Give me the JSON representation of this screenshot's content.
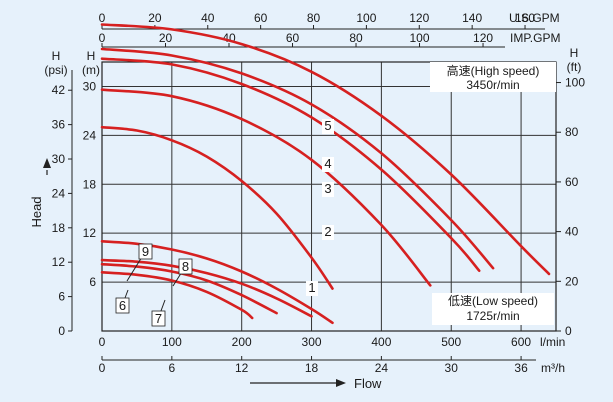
{
  "chart_data": {
    "type": "line",
    "axes": {
      "flow_lmin": {
        "label": "l/min",
        "ticks": [
          0,
          100,
          200,
          300,
          400,
          500,
          600
        ],
        "range": [
          0,
          650
        ]
      },
      "flow_m3h": {
        "label": "m³/h",
        "ticks": [
          0,
          6,
          12,
          18,
          24,
          30,
          36
        ]
      },
      "flow_usgpm": {
        "label": "U.S.GPM",
        "ticks": [
          0,
          20,
          40,
          60,
          80,
          100,
          120,
          140,
          160
        ]
      },
      "flow_impgpm": {
        "label": "IMP.GPM",
        "ticks": [
          0,
          20,
          40,
          60,
          80,
          100,
          120
        ]
      },
      "head_psi": {
        "label": "H\n(psi)",
        "ticks": [
          0,
          6,
          12,
          18,
          24,
          30,
          36,
          42
        ]
      },
      "head_m": {
        "label": "H\n(m)",
        "ticks": [
          6,
          12,
          18,
          24,
          30
        ],
        "range": [
          0,
          33
        ]
      },
      "head_ft": {
        "label": "H\n(ft)",
        "ticks": [
          0,
          20,
          40,
          60,
          80,
          100
        ]
      }
    },
    "xlabel": "Flow",
    "ylabel": "Head",
    "high_speed": {
      "title": "高速(High speed)",
      "rpm": "3450r/min"
    },
    "low_speed": {
      "title": "低速(Low speed)",
      "rpm": "1725r/min"
    },
    "series": [
      {
        "name": "1",
        "speed": "high",
        "x": [
          0,
          50,
          100,
          150,
          200,
          250,
          300,
          330
        ],
        "y": [
          25,
          24.6,
          23.4,
          21.4,
          18.4,
          14.4,
          9,
          5.2
        ]
      },
      {
        "name": "2",
        "speed": "high",
        "x": [
          0,
          100,
          200,
          300,
          400,
          470
        ],
        "y": [
          29.6,
          28.8,
          26,
          21,
          13,
          5.6
        ]
      },
      {
        "name": "3",
        "speed": "high",
        "x": [
          0,
          100,
          200,
          300,
          400,
          500,
          540
        ],
        "y": [
          33.4,
          32.7,
          30.3,
          26.2,
          19.8,
          11.4,
          7.4
        ]
      },
      {
        "name": "4",
        "speed": "high",
        "x": [
          0,
          100,
          200,
          300,
          400,
          500,
          560
        ],
        "y": [
          34.6,
          33.8,
          31.6,
          27.8,
          21.8,
          13.6,
          7.7
        ]
      },
      {
        "name": "5",
        "speed": "high",
        "x": [
          0,
          100,
          200,
          300,
          400,
          500,
          600,
          640
        ],
        "y": [
          37.6,
          37,
          35.2,
          31.8,
          26.4,
          19.2,
          10.4,
          7
        ]
      },
      {
        "name": "6",
        "speed": "low",
        "x": [
          0,
          50,
          100,
          150,
          200,
          215
        ],
        "y": [
          7.2,
          6.9,
          6.2,
          4.8,
          2.6,
          1.6
        ]
      },
      {
        "name": "7",
        "speed": "low",
        "x": [
          0,
          50,
          100,
          150,
          200,
          250
        ],
        "y": [
          8.2,
          7.9,
          7.3,
          6.2,
          4.4,
          2.2
        ]
      },
      {
        "name": "8",
        "speed": "low",
        "x": [
          0,
          50,
          100,
          150,
          200,
          250,
          300
        ],
        "y": [
          8.7,
          8.5,
          8,
          7.1,
          5.8,
          4,
          1.8
        ]
      },
      {
        "name": "9",
        "speed": "low",
        "x": [
          0,
          50,
          100,
          150,
          200,
          250,
          300,
          330
        ],
        "y": [
          11,
          10.7,
          10,
          8.9,
          7.3,
          5.2,
          2.7,
          1
        ]
      }
    ]
  }
}
